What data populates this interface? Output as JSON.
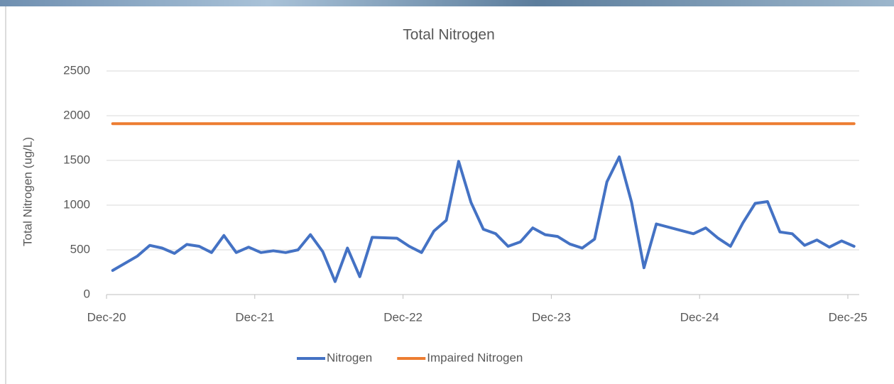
{
  "chart_data": {
    "type": "line",
    "title": "Total Nitrogen",
    "ylabel": "Total Nitrogen (ug/L)",
    "x": [
      "Dec-20",
      "Feb-21",
      "Mar-21",
      "Apr-21",
      "May-21",
      "Jun-21",
      "Jul-21",
      "Aug-21",
      "Sep-21",
      "Oct-21",
      "Nov-21",
      "Dec-21",
      "Jan-22",
      "Feb-22",
      "Mar-22",
      "Apr-22",
      "May-22",
      "Jun-22",
      "Jul-22",
      "Aug-22",
      "Sep-22",
      "Oct-22",
      "Nov-22",
      "Dec-22",
      "Jan-23",
      "Feb-23",
      "Mar-23",
      "Apr-23",
      "May-23",
      "Jun-23",
      "Jul-23",
      "Aug-23",
      "Sep-23",
      "Oct-23",
      "Nov-23",
      "Dec-23",
      "Jan-24",
      "Feb-24",
      "Mar-24",
      "Apr-24",
      "May-24",
      "Jun-24",
      "Jul-24",
      "Aug-24",
      "Nov-24",
      "Dec-24",
      "Jan-25",
      "Feb-25",
      "Mar-25",
      "Apr-25",
      "May-25",
      "Jun-25",
      "Jul-25",
      "Aug-25",
      "Sep-25",
      "Oct-25",
      "Nov-25",
      "Dec-25"
    ],
    "series": [
      {
        "name": "Nitrogen",
        "color": "#4472c4",
        "values": [
          270,
          430,
          550,
          520,
          460,
          560,
          540,
          470,
          660,
          470,
          530,
          470,
          490,
          470,
          500,
          670,
          480,
          145,
          520,
          200,
          640,
          635,
          630,
          540,
          470,
          710,
          830,
          1490,
          1030,
          730,
          680,
          540,
          590,
          745,
          670,
          650,
          565,
          520,
          620,
          1260,
          1540,
          1030,
          300,
          790,
          680,
          745,
          630,
          540,
          800,
          1020,
          1040,
          700,
          680,
          550,
          610,
          530,
          600,
          540
        ]
      },
      {
        "name": "Impaired Nitrogen",
        "color": "#ed7d31",
        "values": [
          1910,
          1910,
          1910,
          1910,
          1910,
          1910,
          1910,
          1910,
          1910,
          1910,
          1910,
          1910,
          1910,
          1910,
          1910,
          1910,
          1910,
          1910,
          1910,
          1910,
          1910,
          1910,
          1910,
          1910,
          1910,
          1910,
          1910,
          1910,
          1910,
          1910,
          1910,
          1910,
          1910,
          1910,
          1910,
          1910,
          1910,
          1910,
          1910,
          1910,
          1910,
          1910,
          1910,
          1910,
          1910,
          1910,
          1910,
          1910,
          1910,
          1910,
          1910,
          1910,
          1910,
          1910,
          1910,
          1910,
          1910,
          1910
        ]
      }
    ],
    "xlim": [
      "Dec-20",
      "Dec-25"
    ],
    "xticks": [
      "Dec-20",
      "Dec-21",
      "Dec-22",
      "Dec-23",
      "Dec-24",
      "Dec-25"
    ],
    "ylim": [
      0,
      2500
    ],
    "yticks": [
      0,
      500,
      1000,
      1500,
      2000,
      2500
    ],
    "grid": true,
    "legend": "bottom"
  }
}
